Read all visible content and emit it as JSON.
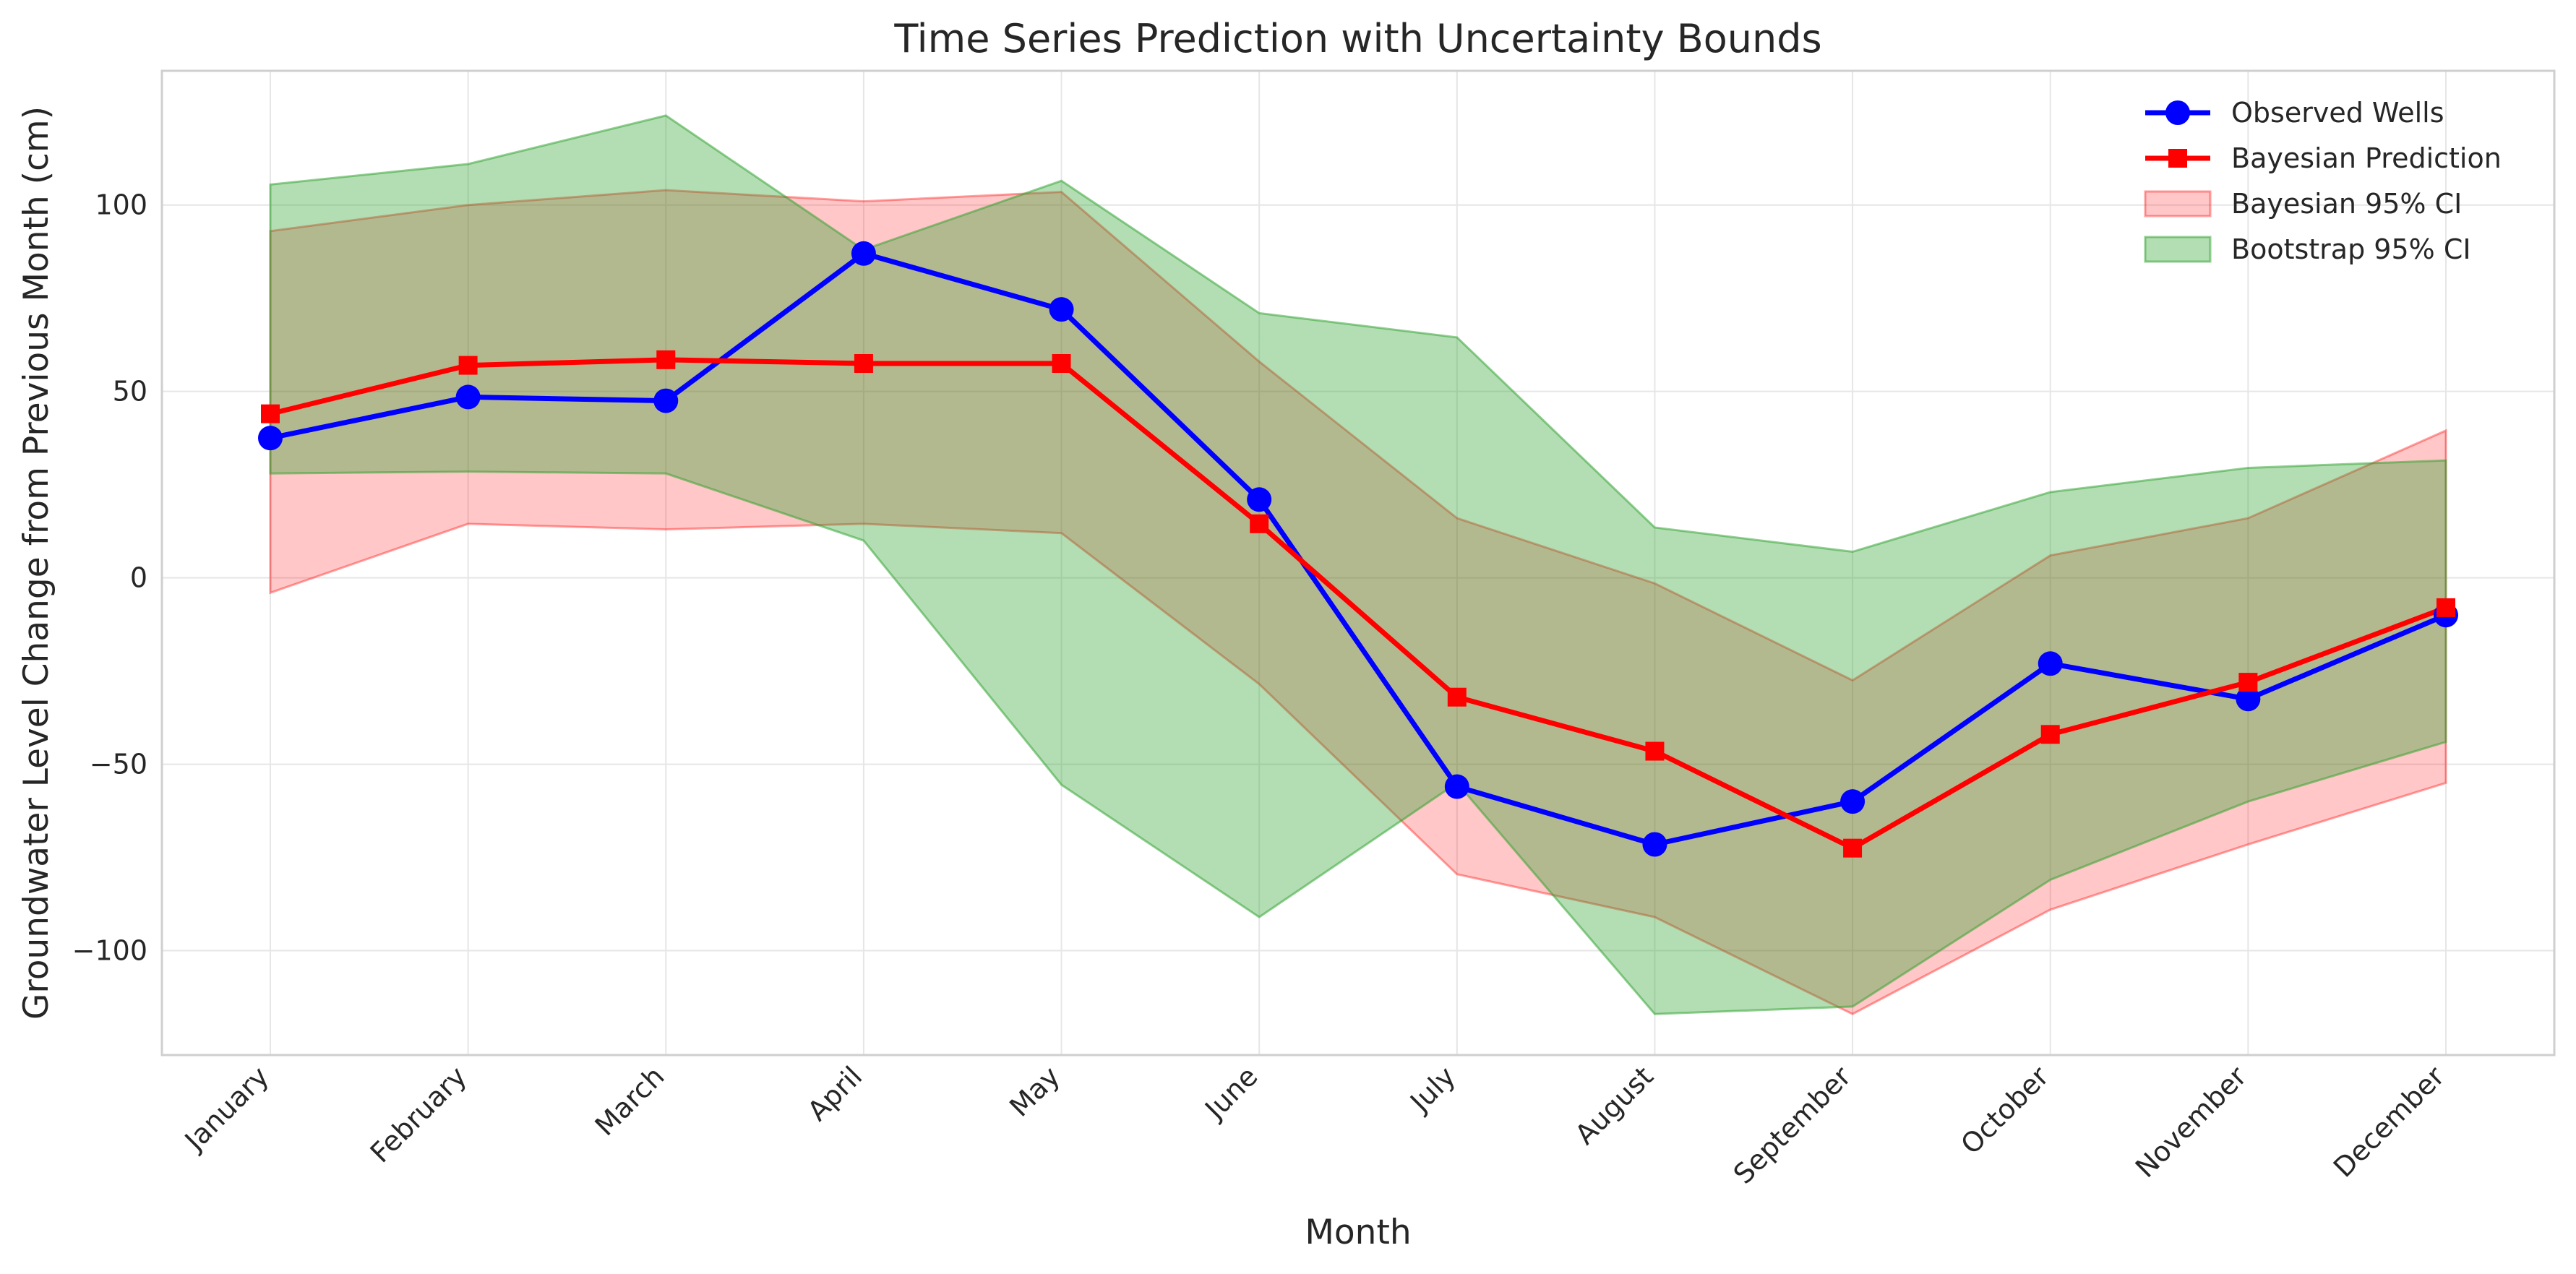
{
  "chart_data": {
    "type": "line",
    "title": "Time Series Prediction with Uncertainty Bounds",
    "xlabel": "Month",
    "ylabel": "Groundwater Level Change from Previous Month (cm)",
    "categories": [
      "January",
      "February",
      "March",
      "April",
      "May",
      "June",
      "July",
      "August",
      "September",
      "October",
      "November",
      "December"
    ],
    "ylim": [
      -128,
      136
    ],
    "yticks": [
      -100,
      -50,
      0,
      50,
      100
    ],
    "grid": true,
    "legend_position": "top-right",
    "series": [
      {
        "name": "Observed Wells",
        "kind": "line",
        "marker": "circle",
        "color": "#0000ff",
        "values": [
          37.5,
          48.5,
          47.5,
          87,
          72,
          21,
          -56,
          -71.5,
          -60,
          -23,
          -32.5,
          -10
        ]
      },
      {
        "name": "Bayesian Prediction",
        "kind": "line",
        "marker": "square",
        "color": "#ff0000",
        "values": [
          44,
          57,
          58.5,
          57.5,
          57.5,
          14.5,
          -32,
          -46.5,
          -72.5,
          -42,
          -28,
          -8
        ]
      },
      {
        "name": "Bayesian 95% CI",
        "kind": "band",
        "color": "#ff0000",
        "opacity": 0.22,
        "lower": [
          -4,
          14.5,
          13,
          14.5,
          12,
          -28.5,
          -79.5,
          -91,
          -117,
          -89,
          -71.5,
          -55
        ],
        "upper": [
          93,
          100,
          104,
          101,
          103.5,
          58,
          16,
          -1.5,
          -27.5,
          6,
          16,
          39.5
        ]
      },
      {
        "name": "Bootstrap 95% CI",
        "kind": "band",
        "color": "#2ca02c",
        "opacity": 0.36,
        "lower": [
          28,
          28.5,
          28,
          10,
          -55.5,
          -91,
          -55,
          -117,
          -115,
          -81,
          -60,
          -44
        ],
        "upper": [
          105.5,
          111,
          124,
          88,
          106.5,
          71,
          64.5,
          13.5,
          7,
          23,
          29.5,
          31.5
        ]
      }
    ]
  }
}
